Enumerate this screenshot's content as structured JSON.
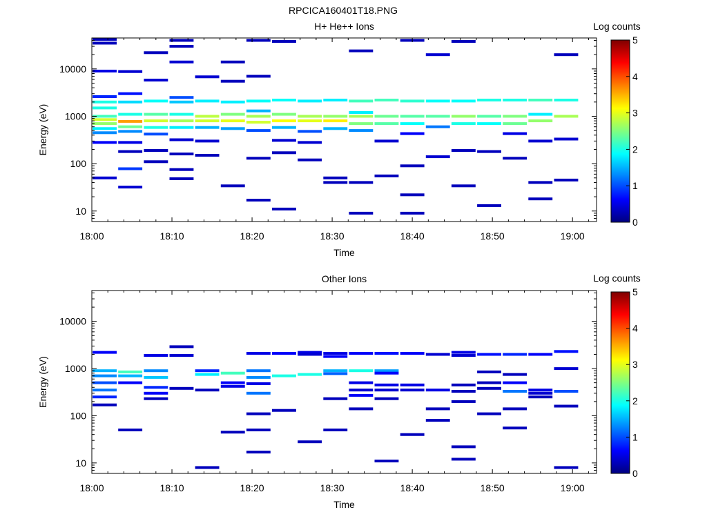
{
  "title": "RPCICA160401T18.PNG",
  "colors": {
    "background": "#ffffff",
    "axes": "#000000",
    "colormap": [
      "#00007f",
      "#0000ff",
      "#0080ff",
      "#00ffff",
      "#80ff80",
      "#ffff00",
      "#ff8000",
      "#ff0000",
      "#7f0000"
    ]
  },
  "chart_data": [
    {
      "type": "heatmap",
      "title": "H+ He++ Ions",
      "xlabel": "Time",
      "ylabel": "Energy (eV)",
      "x_ticks": [
        "18:00",
        "18:10",
        "18:20",
        "18:30",
        "18:40",
        "18:50",
        "19:00"
      ],
      "x_range_minutes": [
        0,
        63
      ],
      "y_scale": "log",
      "y_ticks": [
        "10",
        "100",
        "1000",
        "10000"
      ],
      "y_range": [
        6,
        45000
      ],
      "colorbar": {
        "label": "Log counts",
        "ticks": [
          "0",
          "1",
          "2",
          "3",
          "4",
          "5"
        ],
        "range": [
          0,
          5
        ]
      },
      "time_bins_minutes": [
        1.6,
        4.8,
        8.0,
        11.2,
        14.4,
        17.6,
        20.8,
        24.0,
        27.2,
        30.4,
        33.6,
        36.8,
        40.0,
        43.2,
        46.4,
        49.6,
        52.8,
        56.0,
        59.2,
        62.4
      ],
      "cells": [
        [
          0,
          42000,
          0.3
        ],
        [
          0,
          35000,
          0.3
        ],
        [
          0,
          9000,
          0.5
        ],
        [
          0,
          2600,
          0.8
        ],
        [
          0,
          2000,
          2.0
        ],
        [
          0,
          1500,
          2.0
        ],
        [
          0,
          1000,
          2.2
        ],
        [
          0,
          850,
          2.9
        ],
        [
          0,
          700,
          2.6
        ],
        [
          0,
          550,
          1.8
        ],
        [
          0,
          450,
          1.3
        ],
        [
          0,
          280,
          0.6
        ],
        [
          0,
          50,
          0.4
        ],
        [
          1,
          8800,
          0.4
        ],
        [
          1,
          3000,
          0.7
        ],
        [
          1,
          2000,
          1.7
        ],
        [
          1,
          1100,
          2.0
        ],
        [
          1,
          780,
          3.6
        ],
        [
          1,
          600,
          2.4
        ],
        [
          1,
          480,
          1.3
        ],
        [
          1,
          280,
          0.5
        ],
        [
          1,
          180,
          0.3
        ],
        [
          1,
          78,
          0.9
        ],
        [
          1,
          32,
          0.4
        ],
        [
          2,
          22000,
          0.3
        ],
        [
          2,
          5800,
          0.4
        ],
        [
          2,
          2100,
          1.9
        ],
        [
          2,
          1100,
          2.3
        ],
        [
          2,
          800,
          2.9
        ],
        [
          2,
          580,
          2.0
        ],
        [
          2,
          420,
          1.0
        ],
        [
          2,
          190,
          0.3
        ],
        [
          2,
          110,
          0.3
        ],
        [
          3,
          40000,
          0.3
        ],
        [
          3,
          30000,
          0.3
        ],
        [
          3,
          14000,
          0.4
        ],
        [
          3,
          2500,
          1.0
        ],
        [
          3,
          2000,
          1.6
        ],
        [
          3,
          1100,
          2.0
        ],
        [
          3,
          800,
          2.7
        ],
        [
          3,
          580,
          1.8
        ],
        [
          3,
          320,
          0.4
        ],
        [
          3,
          160,
          0.3
        ],
        [
          3,
          75,
          0.3
        ],
        [
          3,
          48,
          0.3
        ],
        [
          4,
          6800,
          0.4
        ],
        [
          4,
          2100,
          1.8
        ],
        [
          4,
          1000,
          2.8
        ],
        [
          4,
          800,
          2.9
        ],
        [
          4,
          580,
          1.5
        ],
        [
          4,
          300,
          0.4
        ],
        [
          4,
          150,
          0.3
        ],
        [
          5,
          14000,
          0.3
        ],
        [
          5,
          5500,
          0.3
        ],
        [
          5,
          2000,
          1.8
        ],
        [
          5,
          1100,
          2.5
        ],
        [
          5,
          800,
          3.0
        ],
        [
          5,
          550,
          1.4
        ],
        [
          5,
          34,
          0.3
        ],
        [
          6,
          40000,
          0.3
        ],
        [
          6,
          7000,
          0.3
        ],
        [
          6,
          2100,
          1.9
        ],
        [
          6,
          1300,
          1.5
        ],
        [
          6,
          1000,
          2.7
        ],
        [
          6,
          750,
          2.9
        ],
        [
          6,
          500,
          1.0
        ],
        [
          6,
          130,
          0.3
        ],
        [
          6,
          17,
          0.3
        ],
        [
          7,
          38000,
          0.3
        ],
        [
          7,
          2200,
          1.9
        ],
        [
          7,
          1100,
          2.5
        ],
        [
          7,
          800,
          3.1
        ],
        [
          7,
          580,
          1.5
        ],
        [
          7,
          310,
          0.4
        ],
        [
          7,
          170,
          0.3
        ],
        [
          7,
          11,
          0.3
        ],
        [
          8,
          2100,
          1.8
        ],
        [
          8,
          1000,
          2.7
        ],
        [
          8,
          800,
          3.0
        ],
        [
          8,
          480,
          1.0
        ],
        [
          8,
          280,
          0.4
        ],
        [
          8,
          120,
          0.3
        ],
        [
          9,
          2200,
          1.8
        ],
        [
          9,
          1000,
          2.6
        ],
        [
          9,
          800,
          3.2
        ],
        [
          9,
          550,
          1.5
        ],
        [
          9,
          50,
          0.3
        ],
        [
          9,
          40,
          0.3
        ],
        [
          10,
          24000,
          0.3
        ],
        [
          10,
          2100,
          2.2
        ],
        [
          10,
          1200,
          1.8
        ],
        [
          10,
          1000,
          2.7
        ],
        [
          10,
          700,
          2.5
        ],
        [
          10,
          500,
          1.3
        ],
        [
          10,
          40,
          0.3
        ],
        [
          10,
          9,
          0.3
        ],
        [
          11,
          2200,
          2.2
        ],
        [
          11,
          1000,
          2.4
        ],
        [
          11,
          700,
          2.3
        ],
        [
          11,
          300,
          0.4
        ],
        [
          11,
          55,
          0.3
        ],
        [
          12,
          40000,
          0.3
        ],
        [
          12,
          2100,
          2.1
        ],
        [
          12,
          1000,
          2.3
        ],
        [
          12,
          700,
          1.9
        ],
        [
          12,
          430,
          0.6
        ],
        [
          12,
          90,
          0.3
        ],
        [
          12,
          22,
          0.3
        ],
        [
          12,
          9,
          0.3
        ],
        [
          13,
          20000,
          0.4
        ],
        [
          13,
          2100,
          1.9
        ],
        [
          13,
          1000,
          2.3
        ],
        [
          13,
          600,
          1.2
        ],
        [
          13,
          140,
          0.4
        ],
        [
          14,
          38000,
          0.3
        ],
        [
          14,
          2100,
          1.9
        ],
        [
          14,
          1000,
          2.6
        ],
        [
          14,
          700,
          2.0
        ],
        [
          14,
          190,
          0.3
        ],
        [
          14,
          34,
          0.3
        ],
        [
          15,
          2200,
          2.0
        ],
        [
          15,
          1000,
          2.3
        ],
        [
          15,
          700,
          1.9
        ],
        [
          15,
          180,
          0.3
        ],
        [
          15,
          13,
          0.3
        ],
        [
          16,
          2200,
          2.0
        ],
        [
          16,
          1000,
          2.5
        ],
        [
          16,
          700,
          2.4
        ],
        [
          16,
          430,
          0.5
        ],
        [
          16,
          130,
          0.3
        ],
        [
          17,
          2200,
          2.2
        ],
        [
          17,
          1100,
          1.8
        ],
        [
          17,
          800,
          2.6
        ],
        [
          17,
          300,
          0.4
        ],
        [
          17,
          40,
          0.3
        ],
        [
          17,
          18,
          0.3
        ],
        [
          18,
          20000,
          0.3
        ],
        [
          18,
          2200,
          2.0
        ],
        [
          18,
          1000,
          2.7
        ],
        [
          18,
          330,
          0.4
        ],
        [
          18,
          45,
          0.3
        ]
      ]
    },
    {
      "type": "heatmap",
      "title": "Other Ions",
      "xlabel": "Time",
      "ylabel": "Energy (eV)",
      "x_ticks": [
        "18:00",
        "18:10",
        "18:20",
        "18:30",
        "18:40",
        "18:50",
        "19:00"
      ],
      "x_range_minutes": [
        0,
        63
      ],
      "y_scale": "log",
      "y_ticks": [
        "10",
        "100",
        "1000",
        "10000"
      ],
      "y_range": [
        6,
        45000
      ],
      "colorbar": {
        "label": "Log counts",
        "ticks": [
          "0",
          "1",
          "2",
          "3",
          "4",
          "5"
        ],
        "range": [
          0,
          5
        ]
      },
      "time_bins_minutes": [
        1.6,
        4.8,
        8.0,
        11.2,
        14.4,
        17.6,
        20.8,
        24.0,
        27.2,
        30.4,
        33.6,
        36.8,
        40.0,
        43.2,
        46.4,
        49.6,
        52.8,
        56.0,
        59.2,
        62.4
      ],
      "cells": [
        [
          0,
          2200,
          0.6
        ],
        [
          0,
          900,
          1.5
        ],
        [
          0,
          700,
          1.3
        ],
        [
          0,
          500,
          1.0
        ],
        [
          0,
          350,
          1.2
        ],
        [
          0,
          250,
          0.8
        ],
        [
          0,
          170,
          0.3
        ],
        [
          1,
          850,
          2.2
        ],
        [
          1,
          700,
          1.5
        ],
        [
          1,
          500,
          0.6
        ],
        [
          1,
          50,
          0.3
        ],
        [
          2,
          1900,
          0.5
        ],
        [
          2,
          900,
          1.3
        ],
        [
          2,
          650,
          1.6
        ],
        [
          2,
          400,
          0.8
        ],
        [
          2,
          300,
          0.6
        ],
        [
          2,
          230,
          0.3
        ],
        [
          3,
          2900,
          0.3
        ],
        [
          3,
          1900,
          0.4
        ],
        [
          3,
          380,
          0.3
        ],
        [
          4,
          900,
          0.8
        ],
        [
          4,
          750,
          1.8
        ],
        [
          4,
          350,
          0.3
        ],
        [
          4,
          8,
          0.3
        ],
        [
          5,
          800,
          2.2
        ],
        [
          5,
          500,
          0.6
        ],
        [
          5,
          420,
          0.5
        ],
        [
          5,
          45,
          0.3
        ],
        [
          6,
          2100,
          0.5
        ],
        [
          6,
          900,
          1.2
        ],
        [
          6,
          650,
          1.3
        ],
        [
          6,
          480,
          0.5
        ],
        [
          6,
          300,
          1.2
        ],
        [
          6,
          110,
          0.3
        ],
        [
          6,
          50,
          0.3
        ],
        [
          6,
          17,
          0.3
        ],
        [
          7,
          2100,
          0.6
        ],
        [
          7,
          700,
          2.0
        ],
        [
          7,
          130,
          0.3
        ],
        [
          8,
          2200,
          0.5
        ],
        [
          8,
          2000,
          0.4
        ],
        [
          8,
          750,
          2.0
        ],
        [
          8,
          28,
          0.3
        ],
        [
          9,
          2100,
          0.5
        ],
        [
          9,
          1800,
          0.6
        ],
        [
          9,
          900,
          1.5
        ],
        [
          9,
          780,
          1.1
        ],
        [
          9,
          230,
          0.3
        ],
        [
          9,
          50,
          0.3
        ],
        [
          10,
          2100,
          0.6
        ],
        [
          10,
          900,
          2.0
        ],
        [
          10,
          500,
          0.5
        ],
        [
          10,
          350,
          0.4
        ],
        [
          10,
          270,
          0.6
        ],
        [
          10,
          140,
          0.3
        ],
        [
          11,
          2100,
          0.7
        ],
        [
          11,
          900,
          1.4
        ],
        [
          11,
          800,
          0.6
        ],
        [
          11,
          450,
          0.5
        ],
        [
          11,
          350,
          0.4
        ],
        [
          11,
          230,
          0.3
        ],
        [
          11,
          11,
          0.3
        ],
        [
          12,
          2100,
          0.6
        ],
        [
          12,
          450,
          0.5
        ],
        [
          12,
          350,
          0.4
        ],
        [
          12,
          40,
          0.3
        ],
        [
          13,
          2000,
          0.4
        ],
        [
          13,
          350,
          0.5
        ],
        [
          13,
          140,
          0.3
        ],
        [
          13,
          80,
          0.3
        ],
        [
          14,
          2200,
          0.5
        ],
        [
          14,
          1900,
          0.4
        ],
        [
          14,
          450,
          0.3
        ],
        [
          14,
          330,
          0.3
        ],
        [
          14,
          200,
          0.3
        ],
        [
          14,
          22,
          0.3
        ],
        [
          14,
          12,
          0.3
        ],
        [
          15,
          2000,
          0.7
        ],
        [
          15,
          850,
          0.3
        ],
        [
          15,
          500,
          0.3
        ],
        [
          15,
          380,
          0.3
        ],
        [
          15,
          110,
          0.3
        ],
        [
          16,
          2000,
          0.8
        ],
        [
          16,
          750,
          0.3
        ],
        [
          16,
          500,
          0.6
        ],
        [
          16,
          330,
          1.2
        ],
        [
          16,
          140,
          0.3
        ],
        [
          16,
          55,
          0.3
        ],
        [
          17,
          2000,
          0.6
        ],
        [
          17,
          350,
          0.5
        ],
        [
          17,
          300,
          0.4
        ],
        [
          17,
          250,
          0.3
        ],
        [
          18,
          2300,
          0.7
        ],
        [
          18,
          1000,
          0.4
        ],
        [
          18,
          330,
          1.0
        ],
        [
          18,
          160,
          0.3
        ],
        [
          18,
          8,
          0.3
        ]
      ]
    }
  ]
}
